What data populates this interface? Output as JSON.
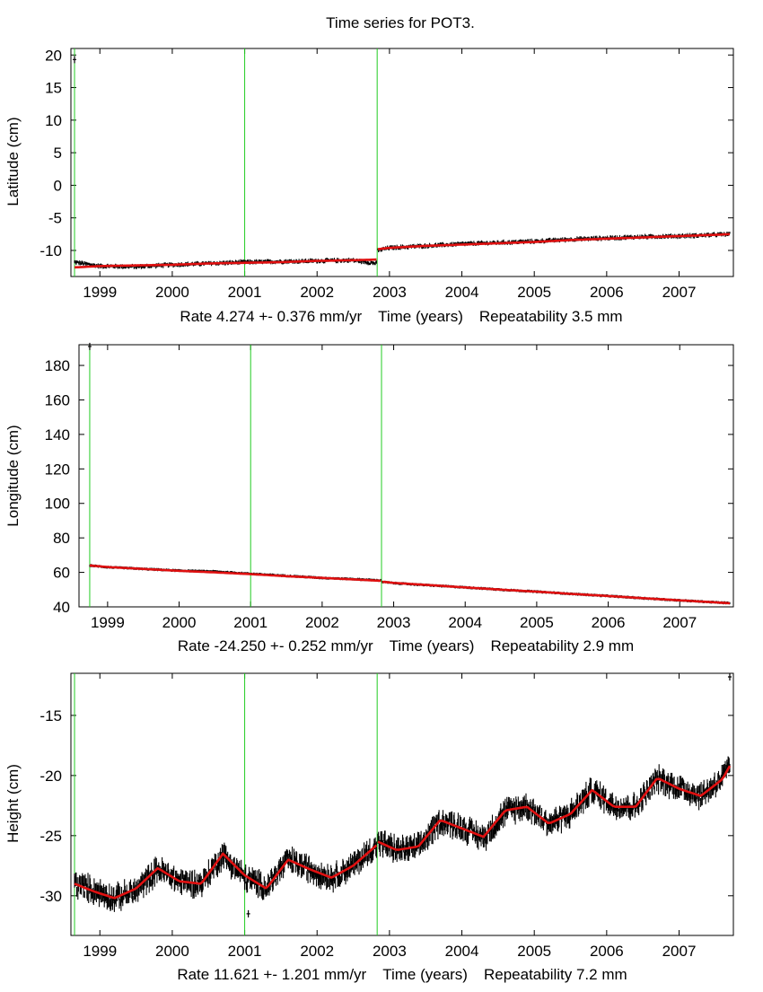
{
  "page": {
    "title": "Time series for POT3."
  },
  "colors": {
    "data": "#000000",
    "model": "#e01010",
    "breaks": "#22cc22",
    "frame": "#000000"
  },
  "chart_data": [
    {
      "type": "line",
      "name": "latitude",
      "ylabel": "Latitude (cm)",
      "xlabel_parts": [
        "Rate 4.274 +- 0.376 mm/yr",
        "Time (years)",
        "Repeatability 3.5 mm"
      ],
      "xlim": [
        1998.6,
        2007.75
      ],
      "ylim": [
        -14,
        21
      ],
      "yticks": [
        20,
        15,
        10,
        5,
        0,
        -5,
        -10
      ],
      "xticks": [
        1999,
        2000,
        2001,
        2002,
        2003,
        2004,
        2005,
        2006,
        2007
      ],
      "breaks": [
        1998.65,
        2001.0,
        2002.83
      ],
      "data_segments": [
        {
          "x": [
            1998.65,
            1999.0,
            1999.5,
            2000.0,
            2000.5,
            2001.0,
            2001.5,
            2002.0,
            2002.5,
            2002.82
          ],
          "y": [
            -11.8,
            -12.4,
            -12.5,
            -12.2,
            -12.0,
            -11.8,
            -11.7,
            -11.6,
            -11.5,
            -12.0
          ]
        },
        {
          "x": [
            2002.84,
            2003.0,
            2003.5,
            2004.0,
            2004.5,
            2005.0,
            2005.5,
            2006.0,
            2006.5,
            2007.0,
            2007.5,
            2007.7
          ],
          "y": [
            -10.0,
            -9.6,
            -9.3,
            -9.0,
            -8.8,
            -8.6,
            -8.3,
            -8.1,
            -7.9,
            -7.8,
            -7.6,
            -7.5
          ]
        }
      ],
      "model_segments": [
        {
          "x": [
            1998.65,
            1999.0,
            1999.5,
            2000.0,
            2000.5,
            2001.0,
            2001.5,
            2002.0,
            2002.5,
            2002.82
          ],
          "y": [
            -12.6,
            -12.4,
            -12.3,
            -12.2,
            -12.0,
            -11.9,
            -11.8,
            -11.6,
            -11.5,
            -11.4
          ]
        },
        {
          "x": [
            2002.84,
            2003.0,
            2003.5,
            2004.0,
            2004.5,
            2005.0,
            2005.5,
            2006.0,
            2006.5,
            2007.0,
            2007.5,
            2007.7
          ],
          "y": [
            -9.8,
            -9.6,
            -9.3,
            -9.1,
            -8.9,
            -8.7,
            -8.4,
            -8.2,
            -8.0,
            -7.8,
            -7.6,
            -7.5
          ]
        }
      ],
      "noise": 0.45,
      "outliers": [
        {
          "x": 1998.65,
          "y": 19.3
        }
      ]
    },
    {
      "type": "line",
      "name": "longitude",
      "ylabel": "Longitude (cm)",
      "xlabel_parts": [
        "Rate -24.250 +- 0.252 mm/yr",
        "Time (years)",
        "Repeatability 2.9 mm"
      ],
      "xlim": [
        1998.6,
        2007.75
      ],
      "ylim": [
        40,
        192
      ],
      "yticks": [
        180,
        160,
        140,
        120,
        100,
        80,
        60,
        40
      ],
      "xticks": [
        1999,
        2000,
        2001,
        2002,
        2003,
        2004,
        2005,
        2006,
        2007
      ],
      "breaks": [
        1998.75,
        2001.0,
        2002.83
      ],
      "data_segments": [
        {
          "x": [
            1998.75,
            1999.0,
            1999.5,
            2000.0,
            2000.5,
            2001.0,
            2001.5,
            2002.0,
            2002.5,
            2002.82
          ],
          "y": [
            64.0,
            63.0,
            62.0,
            61.0,
            60.5,
            59.2,
            58.0,
            56.8,
            56.0,
            55.3
          ]
        },
        {
          "x": [
            2002.84,
            2003.0,
            2003.5,
            2004.0,
            2004.5,
            2005.0,
            2005.5,
            2006.0,
            2006.5,
            2007.0,
            2007.5,
            2007.7
          ],
          "y": [
            54.5,
            53.8,
            52.5,
            51.3,
            50.0,
            48.8,
            47.5,
            46.3,
            45.0,
            43.8,
            42.6,
            42.2
          ]
        }
      ],
      "model_segments": [
        {
          "x": [
            1998.75,
            1999.0,
            1999.5,
            2000.0,
            2000.5,
            2001.0,
            2001.5,
            2002.0,
            2002.5,
            2002.82
          ],
          "y": [
            64.0,
            63.1,
            62.0,
            60.9,
            60.0,
            59.0,
            57.8,
            56.8,
            55.8,
            55.1
          ]
        },
        {
          "x": [
            2002.84,
            2003.0,
            2003.5,
            2004.0,
            2004.5,
            2005.0,
            2005.5,
            2006.0,
            2006.5,
            2007.0,
            2007.5,
            2007.7
          ],
          "y": [
            54.6,
            53.9,
            52.6,
            51.3,
            50.0,
            48.8,
            47.5,
            46.3,
            45.0,
            43.8,
            42.6,
            42.1
          ]
        }
      ],
      "noise": 0.6,
      "outliers": [
        {
          "x": 1998.75,
          "y": 191.0
        }
      ]
    },
    {
      "type": "line",
      "name": "height",
      "ylabel": "Height (cm)",
      "xlabel_parts": [
        "Rate 11.621 +- 1.201 mm/yr",
        "Time (years)",
        "Repeatability 7.2 mm"
      ],
      "xlim": [
        1998.6,
        2007.75
      ],
      "ylim": [
        -33.3,
        -11.5
      ],
      "yticks": [
        -15,
        -20,
        -25,
        -30
      ],
      "xticks": [
        1999,
        2000,
        2001,
        2002,
        2003,
        2004,
        2005,
        2006,
        2007
      ],
      "breaks": [
        1998.65,
        2001.0,
        2002.83
      ],
      "data_segments": [
        {
          "x": [
            1998.65,
            1998.9,
            1999.2,
            1999.5,
            1999.8,
            2000.1,
            2000.4,
            2000.7,
            2001.0,
            2001.3,
            2001.6,
            2001.9,
            2002.2,
            2002.5,
            2002.82
          ],
          "y": [
            -29.0,
            -29.5,
            -30.2,
            -29.6,
            -27.8,
            -28.8,
            -29.0,
            -26.6,
            -28.5,
            -29.3,
            -27.0,
            -27.8,
            -28.5,
            -27.5,
            -25.8
          ]
        },
        {
          "x": [
            2002.84,
            2003.1,
            2003.4,
            2003.7,
            2004.0,
            2004.3,
            2004.6,
            2004.9,
            2005.2,
            2005.5,
            2005.8,
            2006.1,
            2006.4,
            2006.7,
            2007.0,
            2007.3,
            2007.6,
            2007.7
          ],
          "y": [
            -25.5,
            -26.2,
            -26.0,
            -23.8,
            -24.3,
            -25.2,
            -23.0,
            -22.5,
            -24.0,
            -23.2,
            -21.2,
            -22.5,
            -22.6,
            -20.3,
            -21.0,
            -21.7,
            -20.2,
            -19.3
          ]
        }
      ],
      "model_segments": [
        {
          "x": [
            1998.65,
            1998.9,
            1999.2,
            1999.5,
            1999.8,
            2000.1,
            2000.4,
            2000.7,
            2001.0,
            2001.3,
            2001.6,
            2001.9,
            2002.2,
            2002.5,
            2002.82
          ],
          "y": [
            -29.0,
            -29.6,
            -30.2,
            -29.4,
            -27.7,
            -28.8,
            -29.0,
            -26.5,
            -28.3,
            -29.4,
            -27.0,
            -27.8,
            -28.5,
            -27.5,
            -25.8
          ]
        },
        {
          "x": [
            2002.84,
            2003.1,
            2003.4,
            2003.7,
            2004.0,
            2004.3,
            2004.6,
            2004.9,
            2005.2,
            2005.5,
            2005.8,
            2006.1,
            2006.4,
            2006.7,
            2007.0,
            2007.3,
            2007.6,
            2007.7
          ],
          "y": [
            -25.5,
            -26.2,
            -25.9,
            -23.7,
            -24.4,
            -25.1,
            -22.9,
            -22.6,
            -24.0,
            -23.2,
            -21.2,
            -22.6,
            -22.6,
            -20.2,
            -21.1,
            -21.7,
            -20.3,
            -19.2
          ]
        }
      ],
      "noise": 1.3,
      "outliers": [
        {
          "x": 2007.7,
          "y": -11.8
        },
        {
          "x": 2001.05,
          "y": -31.5
        }
      ]
    }
  ]
}
